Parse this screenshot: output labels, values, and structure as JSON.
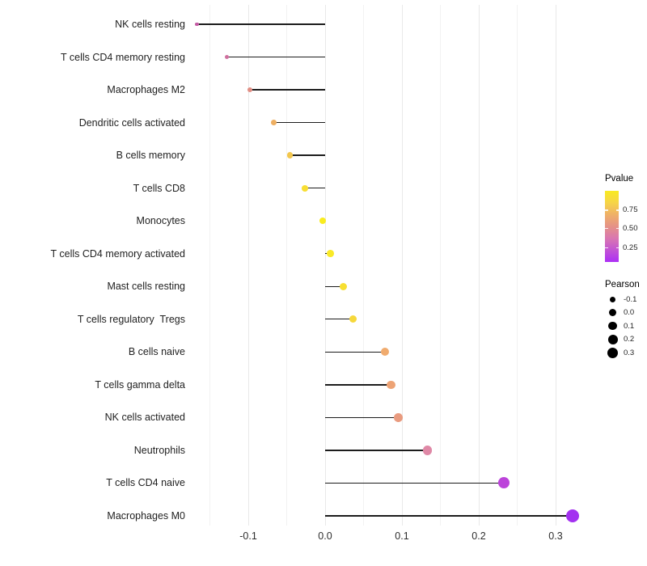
{
  "chart_data": {
    "type": "lollipop",
    "title": "",
    "xlabel": "",
    "ylabel": "",
    "xlim": [
      -0.19,
      0.345
    ],
    "x_ticks": [
      -0.1,
      0.0,
      0.1,
      0.2,
      0.3
    ],
    "x_tick_labels": [
      "-0.1",
      "0.0",
      "0.1",
      "0.2",
      "0.3"
    ],
    "grid_breaks": [
      -0.15,
      -0.1,
      -0.05,
      0.0,
      0.05,
      0.1,
      0.15,
      0.2,
      0.25,
      0.3
    ],
    "grid": "vertical-only",
    "legend_position": "right",
    "points": [
      {
        "label": "NK cells resting",
        "pearson": -0.167,
        "color": "#c45ba4"
      },
      {
        "label": "T cells CD4 memory resting",
        "pearson": -0.128,
        "color": "#cf6f9e"
      },
      {
        "label": "Macrophages M2",
        "pearson": -0.098,
        "color": "#e18e84"
      },
      {
        "label": "Dendritic cells activated",
        "pearson": -0.067,
        "color": "#eeaf62"
      },
      {
        "label": "B cells memory",
        "pearson": -0.046,
        "color": "#f3c74e"
      },
      {
        "label": "T cells CD8",
        "pearson": -0.026,
        "color": "#f8de33"
      },
      {
        "label": "Monocytes",
        "pearson": -0.003,
        "color": "#f9ec1f"
      },
      {
        "label": "T cells CD4 memory activated",
        "pearson": 0.007,
        "color": "#f9e927"
      },
      {
        "label": "Mast cells resting",
        "pearson": 0.024,
        "color": "#f7df31"
      },
      {
        "label": "T cells regulatory  Tregs",
        "pearson": 0.036,
        "color": "#f6d83b"
      },
      {
        "label": "B cells naive",
        "pearson": 0.078,
        "color": "#f0ab6e"
      },
      {
        "label": "T cells gamma delta",
        "pearson": 0.086,
        "color": "#eda375"
      },
      {
        "label": "NK cells activated",
        "pearson": 0.095,
        "color": "#e99b7f"
      },
      {
        "label": "Neutrophils",
        "pearson": 0.133,
        "color": "#df88a6"
      },
      {
        "label": "T cells CD4 naive",
        "pearson": 0.233,
        "color": "#bc43da"
      },
      {
        "label": "Macrophages M0",
        "pearson": 0.322,
        "color": "#a331f0"
      }
    ],
    "legends": {
      "color": {
        "title": "Pvalue",
        "ticks": [
          "0.75",
          "0.50",
          "0.25"
        ],
        "gradient_stops": [
          "#f9ea21",
          "#f6d547",
          "#efb067",
          "#e59287",
          "#d977b1",
          "#c254d4",
          "#ac2ff5"
        ]
      },
      "size": {
        "title": "Pearson",
        "entries": [
          "-0.1",
          "0.0",
          "0.1",
          "0.2",
          "0.3"
        ]
      }
    }
  }
}
